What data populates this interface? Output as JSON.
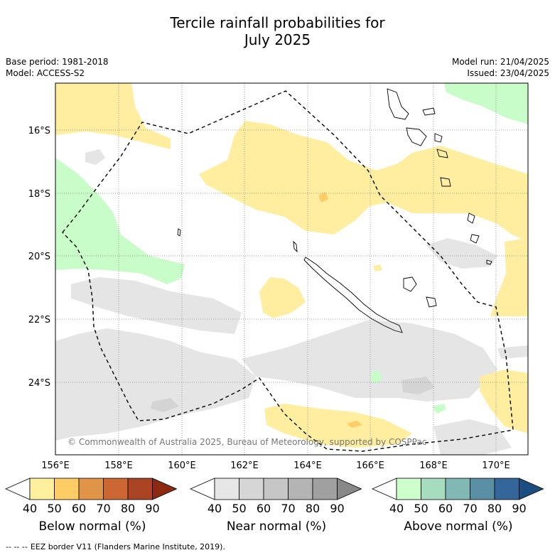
{
  "title_line1": "Tercile rainfall probabilities for",
  "title_line2": "July 2025",
  "meta": {
    "base_period": "Base period: 1981-2018",
    "model": "Model: ACCESS-S2",
    "model_run": "Model run: 21/04/2025",
    "issued": "Issued: 23/04/2025"
  },
  "map": {
    "lon_labels": [
      "156°E",
      "158°E",
      "160°E",
      "162°E",
      "164°E",
      "166°E",
      "168°E",
      "170°E"
    ],
    "lat_labels": [
      "16°S",
      "18°S",
      "20°S",
      "22°S",
      "24°S"
    ],
    "copyright": "© Commonwealth of Australia 2025, Bureau of Meteorology, supported by COSPPac",
    "colors": {
      "below_50": "#ffeea0",
      "below_60": "#ffcc66",
      "near_50": "#e5e5e5",
      "near_60": "#d4d4d4",
      "above_50": "#c8fcc8",
      "coast": "#000000"
    }
  },
  "colorbars": [
    {
      "caption": "Below normal (%)",
      "ticks": [
        "40",
        "50",
        "60",
        "70",
        "80",
        "90"
      ],
      "colors": [
        "#ffffff",
        "#fff0a0",
        "#ffcc66",
        "#e09448",
        "#cc6633",
        "#aa4422",
        "#8b2a10"
      ]
    },
    {
      "caption": "Near normal (%)",
      "ticks": [
        "40",
        "50",
        "60",
        "70",
        "80",
        "90"
      ],
      "colors": [
        "#ffffff",
        "#e6e6e6",
        "#d6d6d6",
        "#c6c6c6",
        "#b4b4b4",
        "#a0a0a0",
        "#888888"
      ]
    },
    {
      "caption": "Above normal (%)",
      "ticks": [
        "40",
        "50",
        "60",
        "70",
        "80",
        "90"
      ],
      "colors": [
        "#ffffff",
        "#ccffcc",
        "#a6dcc0",
        "#80b8b4",
        "#5a90a4",
        "#336699",
        "#1a4d80"
      ]
    }
  ],
  "legend": {
    "line_symbol": "-- -- --",
    "eez_label": "EEZ border V11 (Flanders Marine Institute, 2019)."
  }
}
